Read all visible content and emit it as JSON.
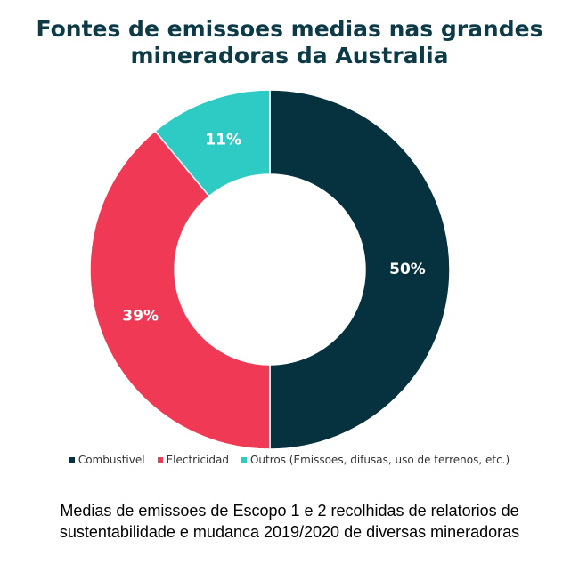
{
  "chart_data": {
    "type": "pie",
    "donut": true,
    "title": "Fontes de emissoes medias nas grandes\nmineradoras da Australia",
    "categories": [
      "Combustivel",
      "Electricidad",
      "Outros (Emissoes, difusas, uso de terrenos, etc.)"
    ],
    "values": [
      50,
      39,
      11
    ],
    "value_labels": [
      "50%",
      "39%",
      "11%"
    ],
    "colors": [
      "#06313f",
      "#f03a55",
      "#2ecbc4"
    ],
    "legend_position": "bottom"
  },
  "footnote": "Medias de emissoes de Escopo 1 e 2 recolhidas de relatorios de\nsustentabilidade e mudanca 2019/2020 de diversas mineradoras"
}
